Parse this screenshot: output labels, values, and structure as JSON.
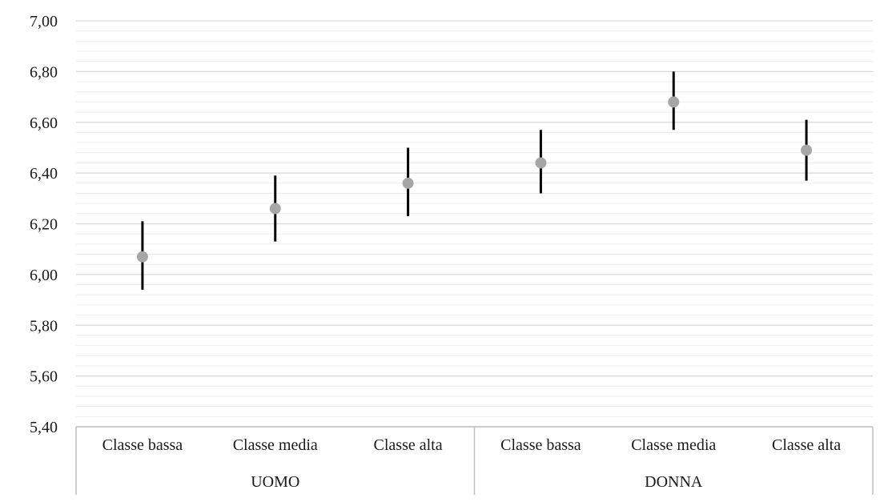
{
  "chart_data": {
    "type": "scatter",
    "title": "",
    "xlabel": "",
    "ylabel": "",
    "ylim": [
      5.4,
      7.0
    ],
    "y_ticks": [
      "5,40",
      "5,60",
      "5,80",
      "6,00",
      "6,20",
      "6,40",
      "6,60",
      "6,80",
      "7,00"
    ],
    "grid": "minor-and-major-horizontal",
    "legend": "none",
    "groups": [
      {
        "label": "UOMO",
        "categories": [
          "Classe bassa",
          "Classe media",
          "Classe alta"
        ],
        "means": [
          6.07,
          6.26,
          6.36
        ],
        "ci_low": [
          5.94,
          6.13,
          6.23
        ],
        "ci_high": [
          6.21,
          6.39,
          6.5
        ]
      },
      {
        "label": "DONNA",
        "categories": [
          "Classe bassa",
          "Classe media",
          "Classe alta"
        ],
        "means": [
          6.44,
          6.68,
          6.49
        ],
        "ci_low": [
          6.32,
          6.57,
          6.37
        ],
        "ci_high": [
          6.57,
          6.8,
          6.61
        ]
      }
    ],
    "colors": {
      "marker": "#a6a6a6",
      "error_bar": "#000000",
      "grid": "#d9d9d9",
      "axis": "#bfbfbf"
    }
  }
}
